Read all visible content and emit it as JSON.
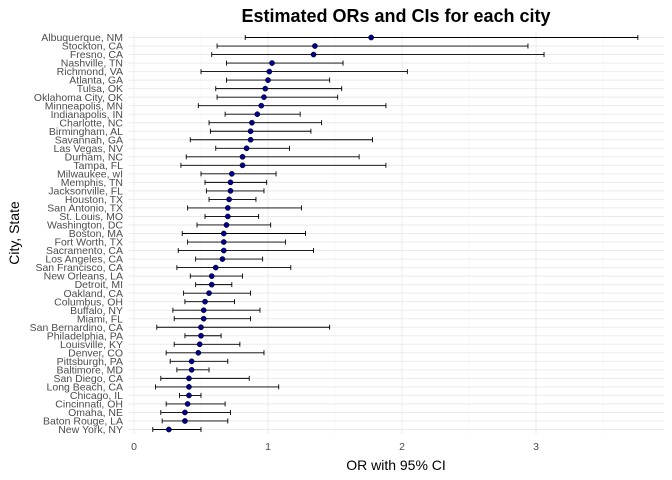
{
  "chart_data": {
    "type": "scatter",
    "title": "Estimated ORs and CIs for each city",
    "xlabel": "OR with 95% CI",
    "ylabel": "City, State",
    "xlim": [
      0,
      3.9
    ],
    "x_ticks": [
      0,
      1,
      2,
      3
    ],
    "grid": true,
    "legend": "none",
    "point_color": "#00008b",
    "series": [
      {
        "city": "Albuquerque, NM",
        "or": 1.77,
        "low": 0.83,
        "high": 3.76
      },
      {
        "city": "Stockton, CA",
        "or": 1.35,
        "low": 0.62,
        "high": 2.94
      },
      {
        "city": "Fresno, CA",
        "or": 1.34,
        "low": 0.58,
        "high": 3.06
      },
      {
        "city": "Nashville, TN",
        "or": 1.03,
        "low": 0.69,
        "high": 1.56
      },
      {
        "city": "Richmond, VA",
        "or": 1.01,
        "low": 0.5,
        "high": 2.04
      },
      {
        "city": "Atlanta, GA",
        "or": 1.0,
        "low": 0.69,
        "high": 1.46
      },
      {
        "city": "Tulsa, OK",
        "or": 0.98,
        "low": 0.61,
        "high": 1.55
      },
      {
        "city": "Oklahoma City, OK",
        "or": 0.97,
        "low": 0.62,
        "high": 1.52
      },
      {
        "city": "Minneapolis, MN",
        "or": 0.95,
        "low": 0.48,
        "high": 1.88
      },
      {
        "city": "Indianapolis, IN",
        "or": 0.92,
        "low": 0.68,
        "high": 1.24
      },
      {
        "city": "Charlotte, NC",
        "or": 0.88,
        "low": 0.56,
        "high": 1.4
      },
      {
        "city": "Birmingham, AL",
        "or": 0.87,
        "low": 0.57,
        "high": 1.32
      },
      {
        "city": "Savannah, GA",
        "or": 0.87,
        "low": 0.42,
        "high": 1.78
      },
      {
        "city": "Las Vegas, NV",
        "or": 0.84,
        "low": 0.61,
        "high": 1.16
      },
      {
        "city": "Durham, NC",
        "or": 0.81,
        "low": 0.39,
        "high": 1.68
      },
      {
        "city": "Tampa, FL",
        "or": 0.81,
        "low": 0.35,
        "high": 1.88
      },
      {
        "city": "Milwaukee, wI",
        "or": 0.73,
        "low": 0.5,
        "high": 1.06
      },
      {
        "city": "Memphis, TN",
        "or": 0.72,
        "low": 0.53,
        "high": 0.99
      },
      {
        "city": "Jacksonville, FL",
        "or": 0.72,
        "low": 0.54,
        "high": 0.97
      },
      {
        "city": "Houston, TX",
        "or": 0.71,
        "low": 0.56,
        "high": 0.91
      },
      {
        "city": "San Antonio, TX",
        "or": 0.7,
        "low": 0.4,
        "high": 1.25
      },
      {
        "city": "St. Louis, MO",
        "or": 0.7,
        "low": 0.53,
        "high": 0.93
      },
      {
        "city": "Washington, DC",
        "or": 0.69,
        "low": 0.47,
        "high": 1.02
      },
      {
        "city": "Boston, MA",
        "or": 0.67,
        "low": 0.36,
        "high": 1.28
      },
      {
        "city": "Fort Worth, TX",
        "or": 0.67,
        "low": 0.4,
        "high": 1.13
      },
      {
        "city": "Sacramento, CA",
        "or": 0.67,
        "low": 0.33,
        "high": 1.34
      },
      {
        "city": "Los Angeles, CA",
        "or": 0.66,
        "low": 0.46,
        "high": 0.96
      },
      {
        "city": "San Francisco, CA",
        "or": 0.61,
        "low": 0.32,
        "high": 1.17
      },
      {
        "city": "New Orleans, LA",
        "or": 0.58,
        "low": 0.42,
        "high": 0.81
      },
      {
        "city": "Detroit, MI",
        "or": 0.58,
        "low": 0.46,
        "high": 0.73
      },
      {
        "city": "Oakland, CA",
        "or": 0.56,
        "low": 0.37,
        "high": 0.87
      },
      {
        "city": "Columbus, OH",
        "or": 0.53,
        "low": 0.38,
        "high": 0.75
      },
      {
        "city": "Buffalo, NY",
        "or": 0.52,
        "low": 0.29,
        "high": 0.94
      },
      {
        "city": "Miami, FL",
        "or": 0.52,
        "low": 0.3,
        "high": 0.87
      },
      {
        "city": "San Bernardino, CA",
        "or": 0.5,
        "low": 0.17,
        "high": 1.46
      },
      {
        "city": "Philadelphia, PA",
        "or": 0.5,
        "low": 0.38,
        "high": 0.65
      },
      {
        "city": "Louisville, KY",
        "or": 0.49,
        "low": 0.3,
        "high": 0.79
      },
      {
        "city": "Denver, CO",
        "or": 0.48,
        "low": 0.24,
        "high": 0.97
      },
      {
        "city": "Pittsburgh, PA",
        "or": 0.43,
        "low": 0.27,
        "high": 0.7
      },
      {
        "city": "Baltimore, MD",
        "or": 0.43,
        "low": 0.32,
        "high": 0.56
      },
      {
        "city": "San Diego, CA",
        "or": 0.41,
        "low": 0.2,
        "high": 0.86
      },
      {
        "city": "Long Beach, CA",
        "or": 0.41,
        "low": 0.16,
        "high": 1.08
      },
      {
        "city": "Chicago, IL",
        "or": 0.41,
        "low": 0.34,
        "high": 0.5
      },
      {
        "city": "Cincinnati, OH",
        "or": 0.4,
        "low": 0.24,
        "high": 0.68
      },
      {
        "city": "Omaha, NE",
        "or": 0.38,
        "low": 0.2,
        "high": 0.72
      },
      {
        "city": "Baton Rouge, LA",
        "or": 0.38,
        "low": 0.21,
        "high": 0.7
      },
      {
        "city": "New York, NY",
        "or": 0.26,
        "low": 0.14,
        "high": 0.5
      }
    ]
  }
}
